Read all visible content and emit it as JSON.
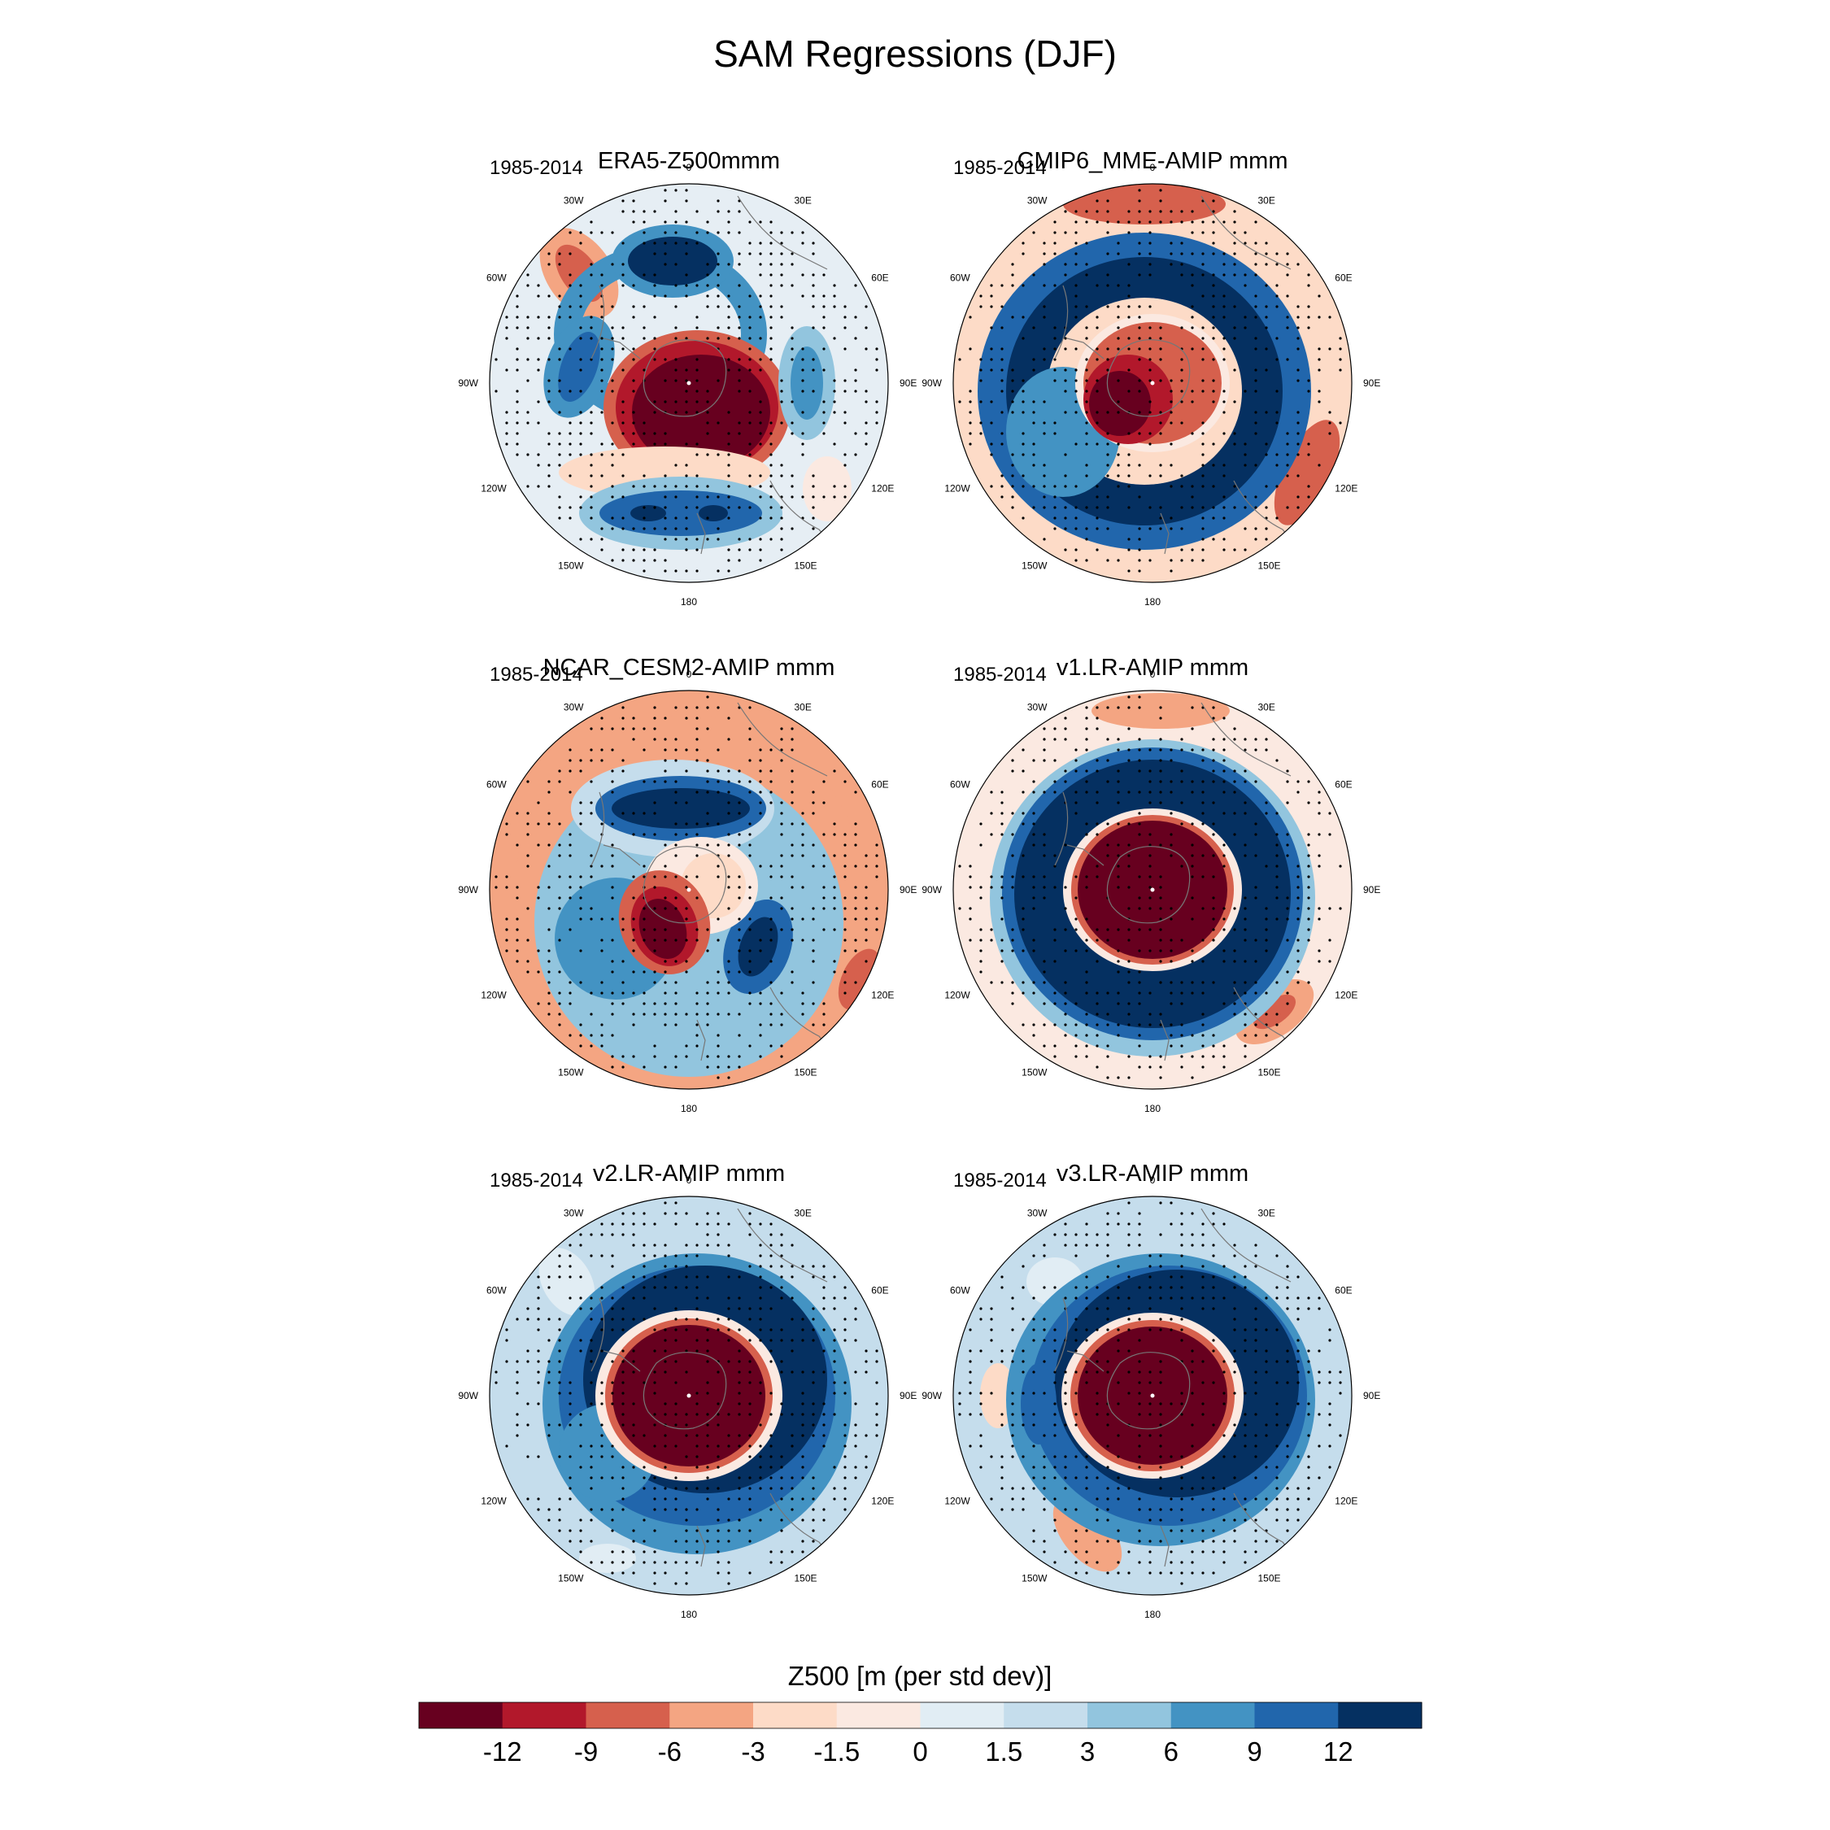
{
  "figure": {
    "title": "SAM Regressions (DJF)",
    "period": "1985-2014"
  },
  "chart_data": {
    "type": "polar-contour-map",
    "variable": "Z500",
    "units": "m (per std dev)",
    "region": "Southern Hemisphere polar stereographic",
    "lon_labels": [
      "0",
      "30E",
      "60E",
      "90E",
      "120E",
      "150E",
      "180",
      "150W",
      "120W",
      "90W",
      "60W",
      "30W"
    ],
    "panels": [
      {
        "title": "ERA5-Z500mmm",
        "period": "1985-2014",
        "pattern": "era5"
      },
      {
        "title": "CMIP6_MME-AMIP  mmm",
        "period": "1985-2014",
        "pattern": "cmip6"
      },
      {
        "title": "NCAR_CESM2-AMIP  mmm",
        "period": "1985-2014",
        "pattern": "cesm2"
      },
      {
        "title": "v1.LR-AMIP  mmm",
        "period": "1985-2014",
        "pattern": "v1"
      },
      {
        "title": "v2.LR-AMIP  mmm",
        "period": "1985-2014",
        "pattern": "v2"
      },
      {
        "title": "v3.LR-AMIP  mmm",
        "period": "1985-2014",
        "pattern": "v3"
      }
    ],
    "colorbar": {
      "title": "Z500 [m (per std dev)]",
      "levels": [
        "-12",
        "-9",
        "-6",
        "-3",
        "-1.5",
        "0",
        "1.5",
        "3",
        "6",
        "9",
        "12"
      ],
      "colors": [
        "#67001f",
        "#b2182b",
        "#d6604d",
        "#f4a582",
        "#fddbc7",
        "#fbe9e1",
        "#e1edf4",
        "#c5ddec",
        "#92c5de",
        "#4393c3",
        "#2166ac",
        "#053061"
      ]
    }
  }
}
